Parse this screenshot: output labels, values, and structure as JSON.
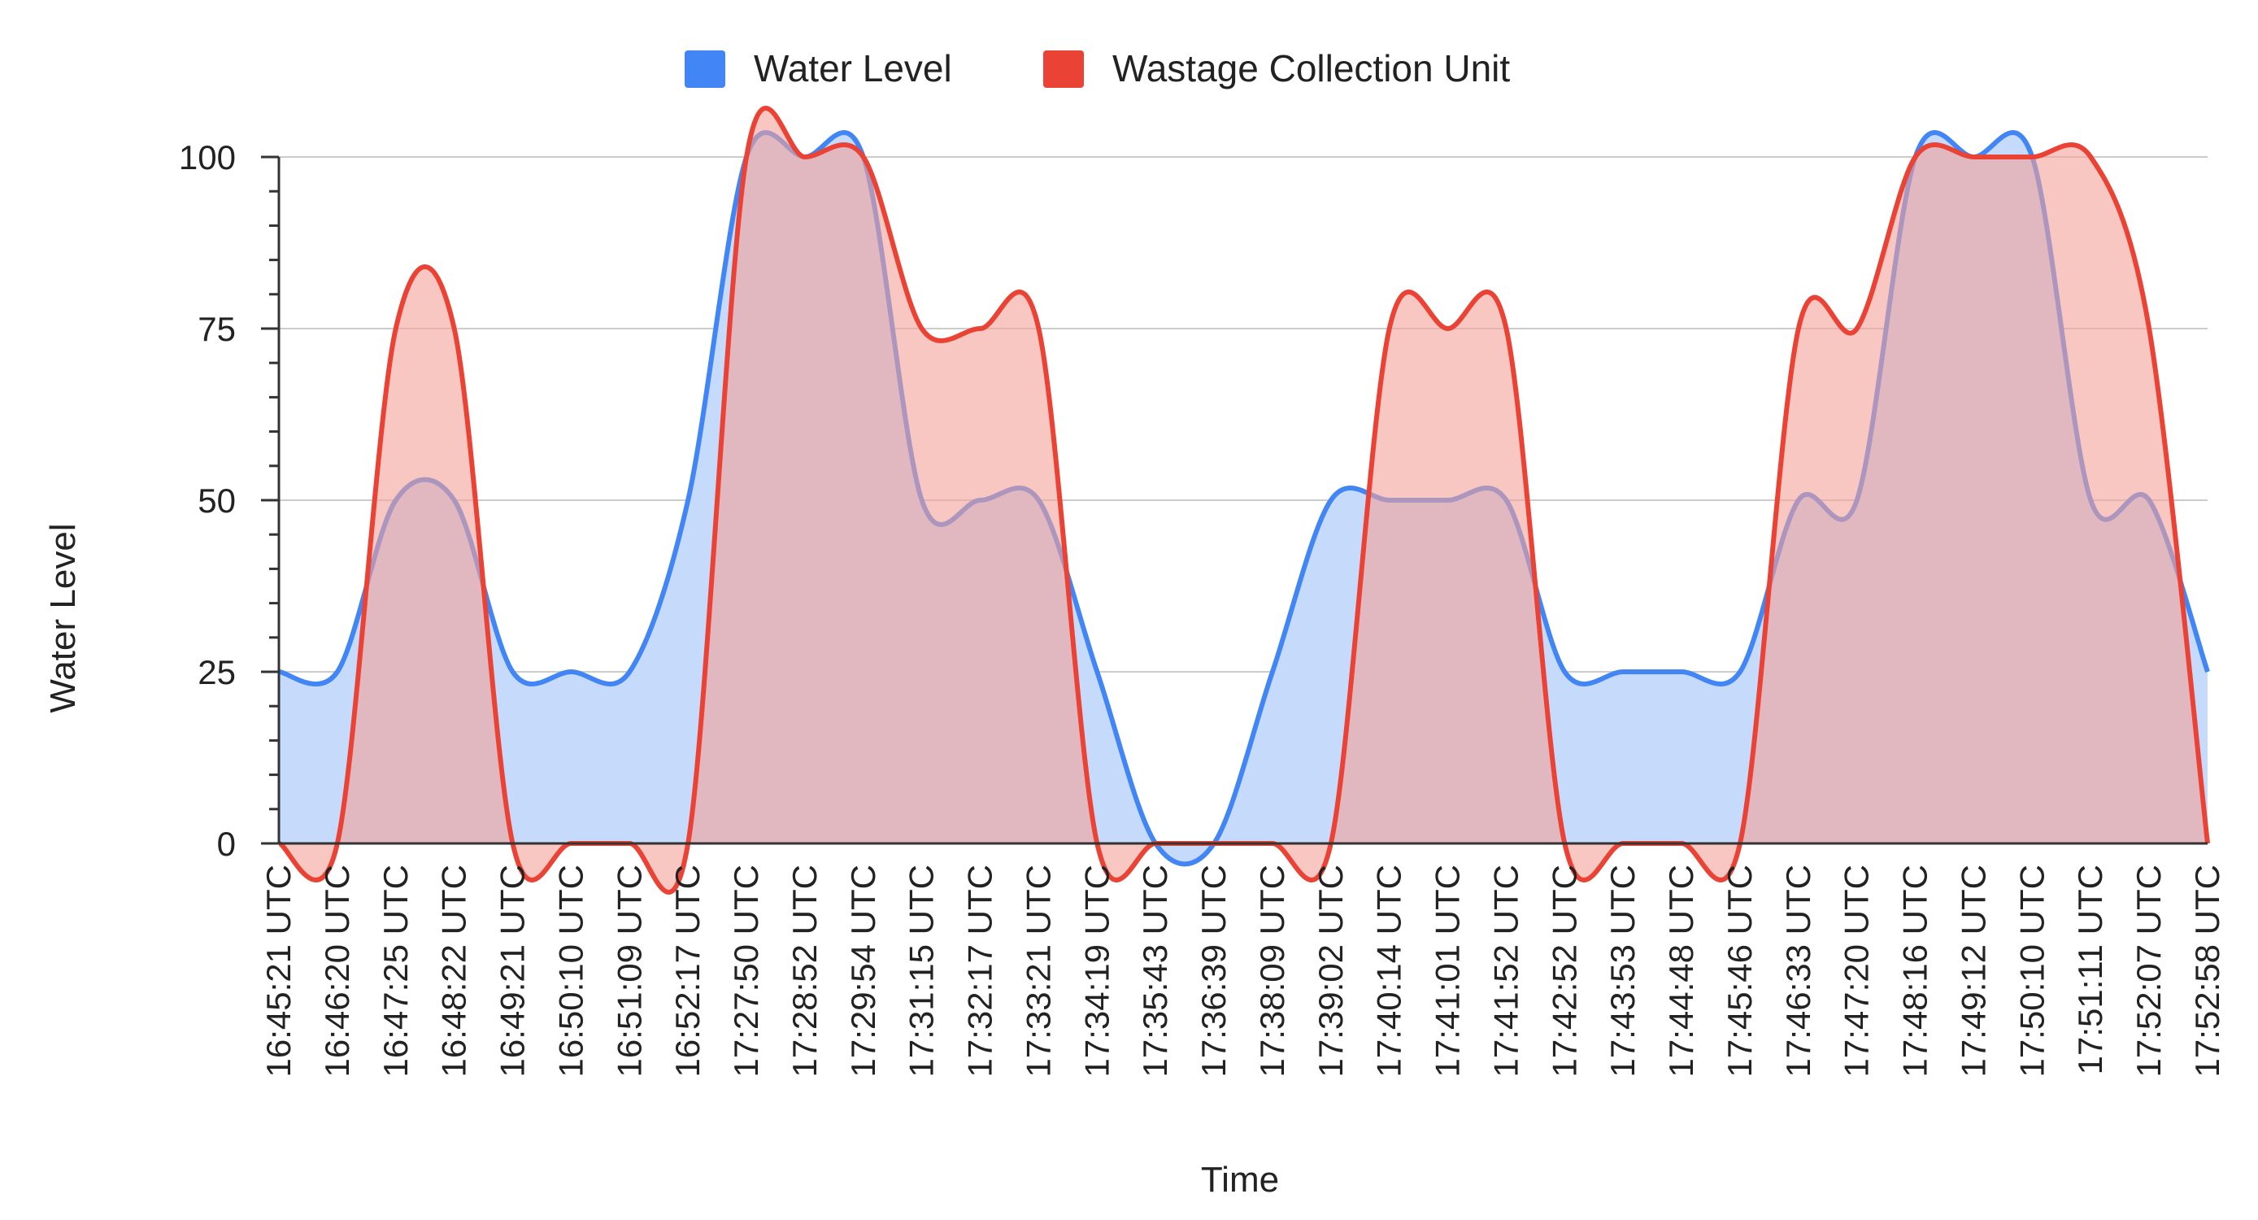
{
  "chart_data": {
    "type": "area",
    "title": "",
    "xlabel": "Time",
    "ylabel": "Water Level",
    "ylim": [
      0,
      100
    ],
    "yticks": [
      0,
      25,
      50,
      75,
      100
    ],
    "grid": true,
    "legend_position": "top",
    "categories": [
      "16:45:21 UTC",
      "16:46:20 UTC",
      "16:47:25 UTC",
      "16:48:22 UTC",
      "16:49:21 UTC",
      "16:50:10 UTC",
      "16:51:09 UTC",
      "16:52:17 UTC",
      "17:27:50 UTC",
      "17:28:52 UTC",
      "17:29:54 UTC",
      "17:31:15 UTC",
      "17:32:17 UTC",
      "17:33:21 UTC",
      "17:34:19 UTC",
      "17:35:43 UTC",
      "17:36:39 UTC",
      "17:38:09 UTC",
      "17:39:02 UTC",
      "17:40:14 UTC",
      "17:41:01 UTC",
      "17:41:52 UTC",
      "17:42:52 UTC",
      "17:43:53 UTC",
      "17:44:48 UTC",
      "17:45:46 UTC",
      "17:46:33 UTC",
      "17:47:20 UTC",
      "17:48:16 UTC",
      "17:49:12 UTC",
      "17:50:10 UTC",
      "17:51:11 UTC",
      "17:52:07 UTC",
      "17:52:58 UTC"
    ],
    "series": [
      {
        "name": "Water Level",
        "color": "#4285f4",
        "fill": "#c6dafb",
        "values": [
          25,
          25,
          50,
          50,
          25,
          25,
          25,
          50,
          100,
          100,
          100,
          50,
          50,
          50,
          25,
          0,
          0,
          25,
          50,
          50,
          50,
          50,
          25,
          25,
          25,
          25,
          50,
          50,
          100,
          100,
          100,
          50,
          50,
          25
        ]
      },
      {
        "name": "Wastage Collection Unit",
        "color": "#ea4335",
        "fill": "#f4a19a",
        "values": [
          0,
          0,
          75,
          75,
          0,
          0,
          0,
          0,
          100,
          100,
          100,
          75,
          75,
          75,
          0,
          0,
          0,
          0,
          0,
          75,
          75,
          75,
          0,
          0,
          0,
          0,
          75,
          75,
          100,
          100,
          100,
          100,
          75,
          0
        ]
      }
    ]
  }
}
